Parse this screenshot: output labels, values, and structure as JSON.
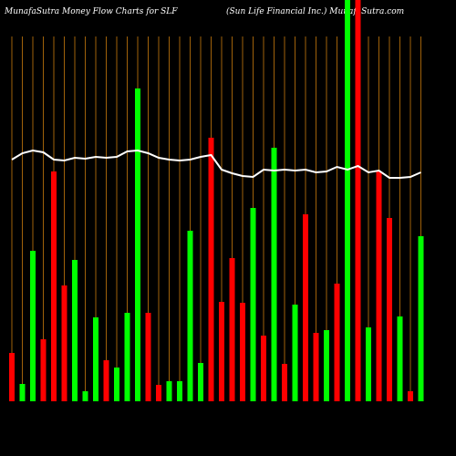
{
  "chart_data": {
    "type": "bar",
    "title": "MunafaSutra  Money Flow Charts for SLF",
    "subtitle": "(Sun  Life  Financial Inc.) MunafaSutra.com",
    "values": [
      53,
      19,
      165,
      68,
      252,
      127,
      155,
      11,
      92,
      45,
      37,
      97,
      343,
      97,
      18,
      22,
      22,
      187,
      42,
      289,
      109,
      157,
      108,
      212,
      72,
      278,
      41,
      106,
      205,
      75,
      78,
      129,
      440,
      440,
      81,
      252,
      201,
      93,
      11,
      181
    ],
    "colors": [
      "#ff0000",
      "#00ff00",
      "#00ff00",
      "#ff0000",
      "#ff0000",
      "#ff0000",
      "#00ff00",
      "#00ff00",
      "#00ff00",
      "#ff0000",
      "#00ff00",
      "#00ff00",
      "#00ff00",
      "#ff0000",
      "#ff0000",
      "#00ff00",
      "#00ff00",
      "#00ff00",
      "#00ff00",
      "#ff0000",
      "#ff0000",
      "#ff0000",
      "#ff0000",
      "#00ff00",
      "#ff0000",
      "#00ff00",
      "#ff0000",
      "#00ff00",
      "#ff0000",
      "#ff0000",
      "#00ff00",
      "#ff0000",
      "#00ff00",
      "#ff0000",
      "#00ff00",
      "#ff0000",
      "#ff0000",
      "#00ff00",
      "#ff0000",
      "#00ff00"
    ],
    "line": {
      "color": "#ffffff",
      "values": [
        265,
        272,
        275,
        273,
        265,
        264,
        267,
        266,
        268,
        267,
        268,
        274,
        275,
        272,
        267,
        265,
        264,
        265,
        268,
        270,
        254,
        250,
        247,
        246,
        254,
        253,
        254,
        253,
        254,
        251,
        252,
        257,
        254,
        258,
        251,
        253,
        245,
        245,
        246,
        251
      ]
    },
    "ylim": [
      0,
      440
    ],
    "grid": true,
    "grid_color": "#a0620a",
    "background": "#000000"
  }
}
